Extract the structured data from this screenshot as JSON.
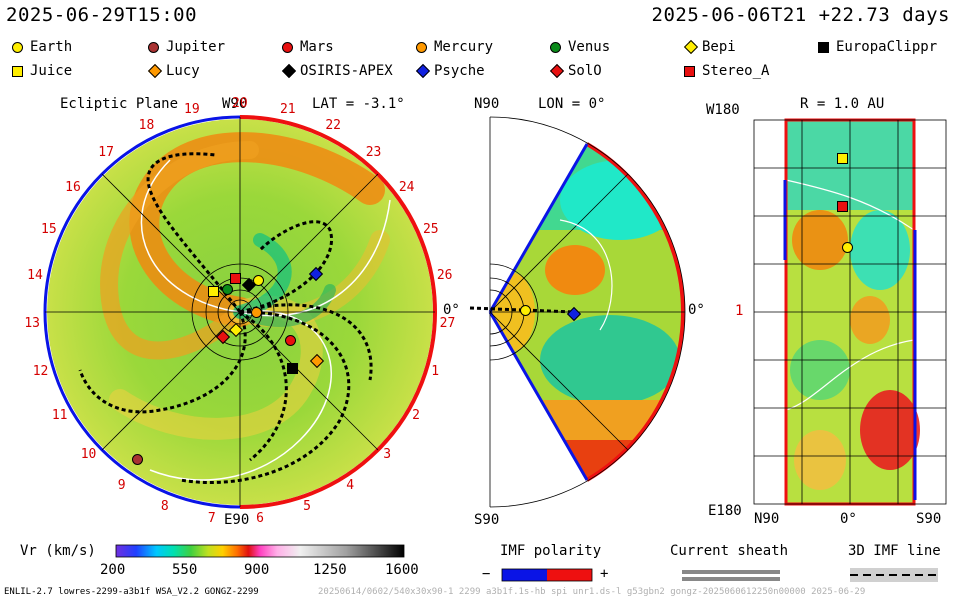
{
  "header": {
    "left_time": "2025-06-29T15:00",
    "right_time": "2025-06-06T21 +22.73 days"
  },
  "legend": {
    "items": [
      {
        "label": "Earth",
        "shape": "circle",
        "color": "#ffee00"
      },
      {
        "label": "Jupiter",
        "shape": "circle",
        "color": "#a83232"
      },
      {
        "label": "Mars",
        "shape": "circle",
        "color": "#e81010"
      },
      {
        "label": "Mercury",
        "shape": "circle",
        "color": "#ff9900"
      },
      {
        "label": "Venus",
        "shape": "circle",
        "color": "#0a8a1a"
      },
      {
        "label": "Bepi",
        "shape": "diamond",
        "color": "#ffee00"
      },
      {
        "label": "EuropaClippr",
        "shape": "square",
        "color": "#000000"
      },
      {
        "label": "Juice",
        "shape": "square",
        "color": "#ffee00"
      },
      {
        "label": "Lucy",
        "shape": "diamond",
        "color": "#ff9900"
      },
      {
        "label": "OSIRIS-APEX",
        "shape": "diamond",
        "color": "#000000"
      },
      {
        "label": "Psyche",
        "shape": "diamond",
        "color": "#1020e0"
      },
      {
        "label": "SolO",
        "shape": "diamond",
        "color": "#e81010"
      },
      {
        "label": "Stereo_A",
        "shape": "square",
        "color": "#e81010"
      }
    ]
  },
  "ecliptic": {
    "title": "Ecliptic Plane",
    "top_label": "W90",
    "lat_label": "LAT = -3.1°",
    "bottom_label": "E90",
    "right_label": "0°",
    "rotation_numbers": [
      "20",
      "21",
      "22",
      "23",
      "24",
      "25",
      "26",
      "27",
      "1",
      "2",
      "3",
      "4",
      "5",
      "6",
      "7",
      "8",
      "9",
      "10",
      "11",
      "12",
      "13",
      "14",
      "15",
      "16",
      "17",
      "18",
      "19"
    ]
  },
  "meridional": {
    "top_label": "N90",
    "lon_label": "LON = 0°",
    "bottom_label": "S90",
    "right_label": "0°"
  },
  "map": {
    "top_left": "W180",
    "title": "R = 1.0 AU",
    "left_mid": "1",
    "bottom_left": "E180",
    "x_labels": [
      "N90",
      "0°",
      "S90"
    ]
  },
  "colorbar": {
    "label": "Vr (km/s)",
    "ticks": [
      "200",
      "550",
      "900",
      "1250",
      "1600"
    ]
  },
  "imf": {
    "label": "IMF polarity",
    "minus": "−",
    "plus": "+",
    "neg_color": "#0a14e6",
    "pos_color": "#ee1010"
  },
  "sheath": {
    "label": "Current sheath"
  },
  "imf3d": {
    "label": "3D IMF line"
  },
  "footer": {
    "left": "ENLIL-2.7 lowres-2299-a3b1f WSA_V2.2 GONGZ-2299",
    "right": "20250614/0602/540x30x90-1 2299 a3b1f.1s-hb spi unr1.ds-l g53gbn2 gongz-2025060612250n00000    2025-06-29"
  }
}
